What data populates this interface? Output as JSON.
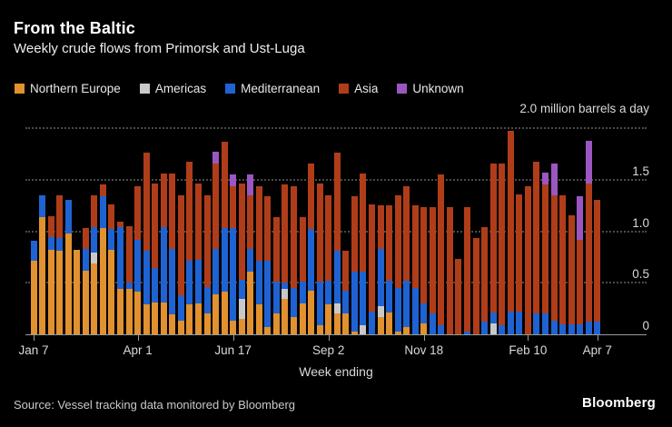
{
  "header": {
    "title": "From the Baltic",
    "subtitle": "Weekly crude flows from Primorsk and Ust-Luga"
  },
  "legend": [
    {
      "label": "Northern Europe",
      "color": "#E1912F"
    },
    {
      "label": "Americas",
      "color": "#C9C9C9"
    },
    {
      "label": "Mediterranean",
      "color": "#1F63D2"
    },
    {
      "label": "Asia",
      "color": "#B03D1A"
    },
    {
      "label": "Unknown",
      "color": "#9C56C2"
    }
  ],
  "axis_annotation": "2.0 million barrels a day",
  "footer": {
    "source": "Source: Vessel tracking data monitored by Bloomberg",
    "logo": "Bloomberg"
  },
  "chart_data": {
    "type": "bar",
    "stacked": true,
    "title": "Weekly crude flows from Primorsk and Ust-Luga",
    "unit": "million barrels a day",
    "xlabel": "Week ending",
    "ylabel": "",
    "ylim": [
      0,
      2.0
    ],
    "grid": "dotted horizontal",
    "legend_position": "top",
    "n_weeks": 66,
    "y_ticks": [
      {
        "value": 0,
        "label": "0"
      },
      {
        "value": 0.5,
        "label": "0.5"
      },
      {
        "value": 1.0,
        "label": "1.0"
      },
      {
        "value": 1.5,
        "label": "1.5"
      },
      {
        "value": 2.0,
        "label": ""
      }
    ],
    "x_tick_labels": [
      {
        "index": 0,
        "label": "Jan 7"
      },
      {
        "index": 12,
        "label": "Apr 1"
      },
      {
        "index": 23,
        "label": "Jun 17"
      },
      {
        "index": 34,
        "label": "Sep 2"
      },
      {
        "index": 45,
        "label": "Nov 18"
      },
      {
        "index": 57,
        "label": "Feb 10"
      },
      {
        "index": 65,
        "label": "Apr 7"
      }
    ],
    "series": [
      {
        "name": "Northern Europe",
        "color": "#E1912F",
        "values": [
          0.71,
          1.14,
          0.82,
          0.81,
          0.98,
          0.82,
          0.62,
          0.69,
          1.03,
          0.82,
          0.44,
          0.44,
          0.41,
          0.29,
          0.31,
          0.31,
          0.19,
          0.13,
          0.29,
          0.3,
          0.2,
          0.39,
          0.41,
          0.13,
          0.15,
          0.61,
          0.29,
          0.07,
          0.2,
          0.34,
          0.17,
          0.3,
          0.42,
          0.09,
          0.29,
          0.2,
          0.2,
          0.03,
          0,
          0,
          0.17,
          0.21,
          0.03,
          0.07,
          0,
          0.11,
          0,
          0,
          0,
          0,
          0,
          0,
          0,
          0,
          0,
          0,
          0,
          0,
          0,
          0,
          0,
          0,
          0,
          0,
          0,
          0
        ]
      },
      {
        "name": "Americas",
        "color": "#C9C9C9",
        "values": [
          0,
          0,
          0,
          0,
          0,
          0,
          0,
          0.1,
          0,
          0,
          0,
          0,
          0,
          0,
          0,
          0,
          0,
          0,
          0,
          0,
          0,
          0,
          0,
          0,
          0.19,
          0,
          0,
          0,
          0,
          0.1,
          0,
          0,
          0,
          0,
          0,
          0.1,
          0,
          0,
          0.09,
          0,
          0.1,
          0,
          0,
          0,
          0,
          0,
          0,
          0,
          0,
          0,
          0,
          0,
          0,
          0.11,
          0,
          0,
          0,
          0,
          0,
          0,
          0,
          0,
          0,
          0,
          0,
          0
        ]
      },
      {
        "name": "Mediterranean",
        "color": "#1F63D2",
        "values": [
          0.2,
          0.21,
          0.12,
          0.12,
          0.32,
          0,
          0.21,
          0.25,
          0.31,
          0.2,
          0.6,
          0.06,
          0.51,
          0.52,
          0.33,
          0.73,
          0.64,
          0.25,
          0.42,
          0.42,
          0.26,
          0.44,
          0.62,
          0.9,
          0.19,
          0.22,
          0.42,
          0.64,
          0.31,
          0.06,
          0.28,
          0.21,
          0.6,
          0.42,
          0.23,
          0.51,
          0.22,
          0.58,
          0.52,
          0.22,
          0.56,
          0.31,
          0.42,
          0.45,
          0.45,
          0.19,
          0.2,
          0.09,
          0,
          0,
          0.03,
          0,
          0.12,
          0.1,
          0.09,
          0.22,
          0.22,
          0,
          0.2,
          0.2,
          0.13,
          0.1,
          0.1,
          0.1,
          0.12,
          0.12
        ]
      },
      {
        "name": "Asia",
        "color": "#B03D1A",
        "values": [
          0,
          0,
          0.21,
          0.42,
          0,
          0,
          0.2,
          0.31,
          0.11,
          0.24,
          0.05,
          0.55,
          0.52,
          0.95,
          0.82,
          0.52,
          0.73,
          0.97,
          0.96,
          0.74,
          0.89,
          0.83,
          0.84,
          0.41,
          0.93,
          0.52,
          0.73,
          0.63,
          0.63,
          0.95,
          0.99,
          0.63,
          0.64,
          0.95,
          0.83,
          0.95,
          0.39,
          0.73,
          0.95,
          1.04,
          0.42,
          0.73,
          0.9,
          0.92,
          0.8,
          0.93,
          1.03,
          1.46,
          1.23,
          0.73,
          1.2,
          0.93,
          0.92,
          1.45,
          1.57,
          1.75,
          1.14,
          1.44,
          1.47,
          1.25,
          1.22,
          1.25,
          1.05,
          0.82,
          1.34,
          1.18
        ]
      },
      {
        "name": "Unknown",
        "color": "#9C56C2",
        "values": [
          0,
          0,
          0,
          0,
          0,
          0,
          0,
          0,
          0,
          0,
          0,
          0,
          0,
          0,
          0,
          0,
          0,
          0,
          0,
          0,
          0,
          0.11,
          0,
          0.11,
          0,
          0.2,
          0,
          0,
          0,
          0,
          0,
          0,
          0,
          0,
          0,
          0,
          0,
          0,
          0,
          0,
          0,
          0,
          0,
          0,
          0,
          0,
          0,
          0,
          0,
          0,
          0,
          0,
          0,
          0,
          0,
          0,
          0,
          0,
          0,
          0.12,
          0.31,
          0,
          0,
          0.42,
          0.42,
          0
        ]
      }
    ]
  }
}
